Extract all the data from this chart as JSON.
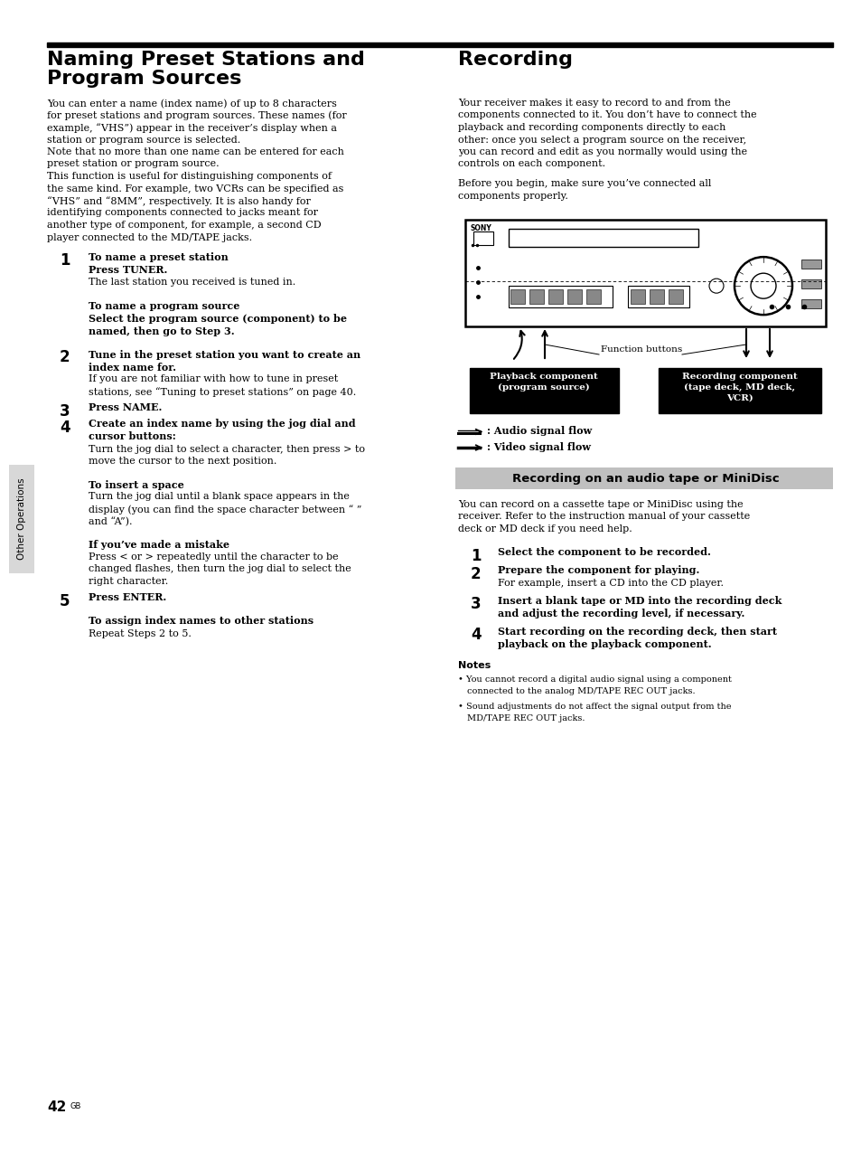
{
  "page_background": "#ffffff",
  "left_title_line1": "Naming Preset Stations and",
  "left_title_line2": "Program Sources",
  "right_title": "Recording",
  "sidebar_label": "Other Operations",
  "page_number": "42",
  "left_intro": "You can enter a name (index name) of up to 8 characters\nfor preset stations and program sources. These names (for\nexample, “VHS”) appear in the receiver’s display when a\nstation or program source is selected.\nNote that no more than one name can be entered for each\npreset station or program source.\nThis function is useful for distinguishing components of\nthe same kind. For example, two VCRs can be specified as\n“VHS” and “8MM”, respectively. It is also handy for\nidentifying components connected to jacks meant for\nanother type of component, for example, a second CD\nplayer connected to the MD/TAPE jacks.",
  "right_intro": "Your receiver makes it easy to record to and from the\ncomponents connected to it. You don’t have to connect the\nplayback and recording components directly to each\nother: once you select a program source on the receiver,\nyou can record and edit as you normally would using the\ncontrols on each component.\n\nBefore you begin, make sure you’ve connected all\ncomponents properly.",
  "left_steps": [
    {
      "num": "1",
      "bold": "To name a preset station",
      "sub_bold": "Press TUNER.",
      "text": "The last station you received is tuned in.",
      "gap_before": false
    },
    {
      "num": "",
      "bold": "To name a program source",
      "sub_bold": "Select the program source (component) to be\nnamed, then go to Step 3.",
      "text": "",
      "gap_before": true
    },
    {
      "num": "2",
      "bold": "Tune in the preset station you want to create an\nindex name for.",
      "sub_bold": "",
      "text": "If you are not familiar with how to tune in preset\nstations, see “Tuning to preset stations” on page 40.",
      "gap_before": true
    },
    {
      "num": "3",
      "bold": "Press NAME.",
      "sub_bold": "",
      "text": "",
      "gap_before": false
    },
    {
      "num": "4",
      "bold": "Create an index name by using the jog dial and\ncursor buttons:",
      "sub_bold": "",
      "text": "Turn the jog dial to select a character, then press > to\nmove the cursor to the next position.",
      "gap_before": false
    },
    {
      "num": "",
      "bold": "To insert a space",
      "sub_bold": "",
      "text": "Turn the jog dial until a blank space appears in the\ndisplay (you can find the space character between “ ”\nand “A”).",
      "gap_before": true
    },
    {
      "num": "",
      "bold": "If you’ve made a mistake",
      "sub_bold": "",
      "text": "Press < or > repeatedly until the character to be\nchanged flashes, then turn the jog dial to select the\nright character.",
      "gap_before": true
    },
    {
      "num": "5",
      "bold": "Press ENTER.",
      "sub_bold": "",
      "text": "",
      "gap_before": false
    },
    {
      "num": "",
      "bold": "To assign index names to other stations",
      "sub_bold": "",
      "text": "Repeat Steps 2 to 5.",
      "gap_before": true
    }
  ],
  "recording_section_title": "Recording on an audio tape or MiniDisc",
  "right_section_intro": "You can record on a cassette tape or MiniDisc using the\nreceiver. Refer to the instruction manual of your cassette\ndeck or MD deck if you need help.",
  "right_steps": [
    {
      "num": "1",
      "bold": "Select the component to be recorded.",
      "text": ""
    },
    {
      "num": "2",
      "bold": "Prepare the component for playing.",
      "text": "For example, insert a CD into the CD player."
    },
    {
      "num": "3",
      "bold": "Insert a blank tape or MD into the recording deck\nand adjust the recording level, if necessary.",
      "text": ""
    },
    {
      "num": "4",
      "bold": "Start recording on the recording deck, then start\nplayback on the playback component.",
      "text": ""
    }
  ],
  "notes_title": "Notes",
  "notes": [
    "You cannot record a digital audio signal using a component\nconnected to the analog MD/TAPE REC OUT jacks.",
    "Sound adjustments do not affect the signal output from the\nMD/TAPE REC OUT jacks."
  ],
  "audio_signal_label": ": Audio signal flow",
  "video_signal_label": ": Video signal flow",
  "function_buttons_label": "Function buttons",
  "playback_box_label": "Playback component\n(program source)",
  "recording_box_label": "Recording component\n(tape deck, MD deck,\nVCR)"
}
